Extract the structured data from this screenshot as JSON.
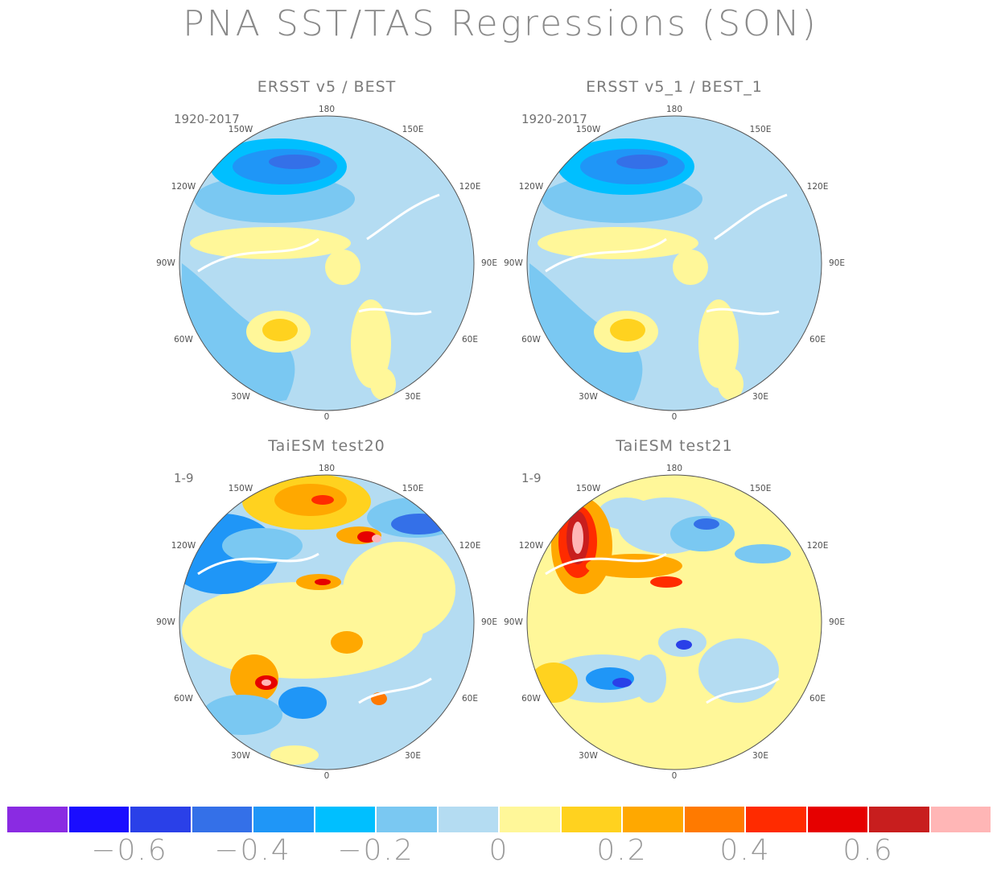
{
  "title": "PNA SST/TAS Regressions (SON)",
  "palette": {
    "c_m07": "#8a2be2",
    "c_m06": "#1a0dff",
    "c_m05": "#2a40e8",
    "c_m04": "#3470e8",
    "c_m03": "#1f96f7",
    "c_m02": "#00bfff",
    "c_m01": "#7ac8f2",
    "c_zero": "#b4dcf2",
    "c_p01": "#fff799",
    "c_p02": "#ffd21f",
    "c_p03": "#ffa800",
    "c_p04": "#ff7a00",
    "c_p05": "#ff2b00",
    "c_p06": "#e60000",
    "c_p07": "#c81e1e",
    "c_p08": "#ffb6b6",
    "land_outline": "#ffffff",
    "coast_outline": "#8a8a8a"
  },
  "panels": [
    {
      "title": "ERSST v5 / BEST",
      "period": "1920-2017",
      "pattern": "obs"
    },
    {
      "title": "ERSST v5_1 / BEST_1",
      "period": "1920-2017",
      "pattern": "obs"
    },
    {
      "title": "TaiESM test20",
      "period": "1-9",
      "pattern": "test20"
    },
    {
      "title": "TaiESM test21",
      "period": "1-9",
      "pattern": "test21"
    }
  ],
  "lon_labels": [
    "180",
    "150E",
    "120E",
    "90E",
    "60E",
    "30E",
    "0",
    "30W",
    "60W",
    "90W",
    "120W",
    "150W"
  ],
  "colorbar": {
    "colors": [
      "#8a2be2",
      "#1a0dff",
      "#2a40e8",
      "#3470e8",
      "#1f96f7",
      "#00bfff",
      "#7ac8f2",
      "#b4dcf2",
      "#fff799",
      "#ffd21f",
      "#ffa800",
      "#ff7a00",
      "#ff2b00",
      "#e60000",
      "#c81e1e",
      "#ffb6b6"
    ],
    "labels": [
      "-0.6",
      "-0.4",
      "-0.2",
      "0",
      "0.2",
      "0.4",
      "0.6"
    ]
  }
}
